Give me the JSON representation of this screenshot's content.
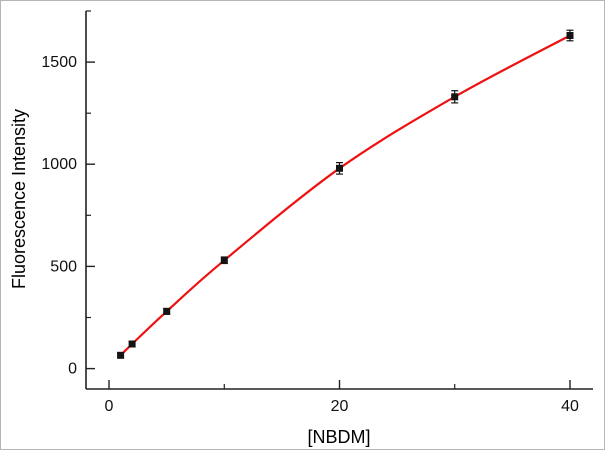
{
  "chart_data": {
    "type": "scatter",
    "title": "",
    "xlabel": "[NBDM]",
    "ylabel": "Fluorescence Intensity",
    "x": [
      1,
      2,
      5,
      10,
      20,
      30,
      40
    ],
    "y": [
      65,
      120,
      280,
      530,
      980,
      1330,
      1630
    ],
    "y_err": [
      12,
      12,
      14,
      16,
      28,
      30,
      26
    ],
    "xlim": [
      -2,
      42
    ],
    "ylim": [
      -100,
      1750
    ],
    "x_major_ticks": [
      0,
      20,
      40
    ],
    "x_minor_ticks": [
      10,
      30
    ],
    "y_major_ticks": [
      0,
      500,
      1000,
      1500
    ],
    "y_minor_ticks": [
      250,
      750,
      1250,
      1750
    ],
    "x_tick_labels": [
      "0",
      "20",
      "40"
    ],
    "y_tick_labels": [
      "0",
      "500",
      "1000",
      "1500"
    ],
    "line_color": "#ee1111",
    "marker_color": "#141414",
    "error_bar_color": "#141414",
    "axis_color": "#222222",
    "tick_label_color": "#111111",
    "grid": false,
    "legend": "none"
  }
}
